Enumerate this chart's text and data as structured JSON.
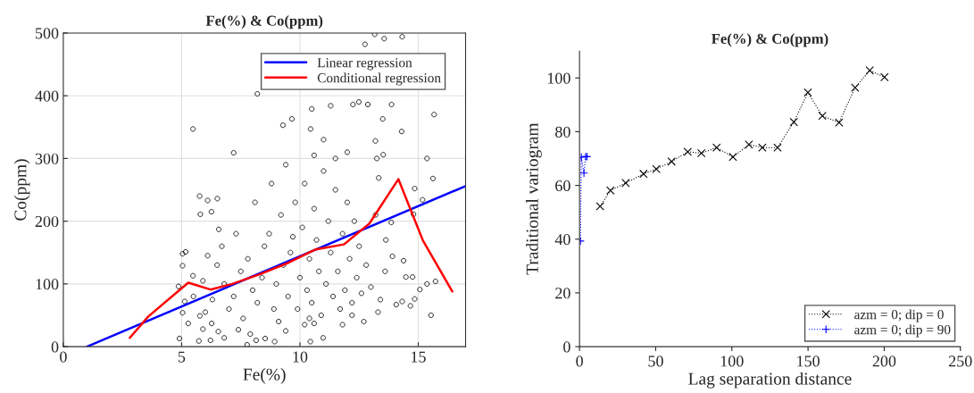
{
  "chart_data": [
    {
      "type": "scatter",
      "title": "Fe(%) & Co(ppm)",
      "xlabel": "Fe(%)",
      "ylabel": "Co(ppm)",
      "xlim": [
        0,
        17
      ],
      "ylim": [
        0,
        500
      ],
      "xticks": [
        0,
        5,
        10,
        15
      ],
      "yticks": [
        0,
        100,
        200,
        300,
        400,
        500
      ],
      "grid": true,
      "legend": "top right",
      "series": [
        {
          "color": "#000000",
          "marker": "circle",
          "x": [
            13.16,
            13.56,
            14.32,
            12.75,
            8.2,
            5.48,
            10.5,
            11.3,
            12.24,
            12.49,
            12.87,
            13.87,
            15.67,
            13.5,
            9.28,
            9.66,
            7.2,
            10.45,
            14.3,
            15.37,
            15.62,
            14.85,
            15.18,
            14.8,
            5.76,
            6.1,
            6.51,
            5.79,
            6.26,
            6.57,
            5.04,
            5.17,
            5.04,
            4.87,
            5.48,
            5.13,
            5.04,
            5.28,
            4.91,
            5.73,
            6.22,
            5.77,
            6.27,
            6.55,
            6.8,
            5.9,
            7.77,
            8.15,
            8.93,
            9.4,
            10.44,
            10.98,
            10.6,
            7.4,
            7.9,
            8.53,
            15.54,
            15.73,
            15.37,
            15.07,
            14.85,
            14.67,
            14.32,
            14.07,
            14.38,
            13.91,
            13.63,
            13.86,
            13.19,
            13.25,
            13.52,
            13.33,
            14.76,
            14.48,
            7,
            7.2,
            7.5,
            7.8,
            8,
            8.2,
            8.5,
            8.7,
            8.9,
            9,
            9.2,
            9.3,
            9.5,
            9.6,
            9.8,
            9.9,
            10,
            10.1,
            10.2,
            10.3,
            10.4,
            10.5,
            10.6,
            10.7,
            10.8,
            10.9,
            11,
            11.1,
            11.2,
            11.3,
            11.4,
            11.5,
            11.6,
            11.7,
            11.8,
            11.9,
            12,
            12.1,
            12.2,
            12.3,
            12.4,
            12.5,
            12.6,
            12.8,
            13,
            13.2,
            13.4,
            13.6,
            7.3,
            7.6,
            8.1,
            8.4,
            8.8,
            9.1,
            9.4,
            9.7,
            10.2,
            10.6,
            11,
            11.5,
            12,
            6.8,
            6.5,
            6.3,
            6,
            6.7,
            5.5,
            5.9,
            6.1,
            12.2,
            12.7,
            13.3,
            11.8,
            10.4
          ],
          "values": [
            498,
            491,
            494,
            482,
            403,
            347,
            379,
            384,
            386,
            390,
            386,
            386,
            370,
            363,
            353,
            363,
            309,
            347,
            343,
            300,
            268,
            252,
            234,
            211,
            240,
            233,
            236,
            211,
            215,
            187,
            148,
            151,
            129,
            96,
            113,
            72,
            54,
            37,
            13,
            9,
            10,
            49,
            37,
            24,
            14,
            28,
            3,
            10,
            8,
            25,
            8,
            14,
            37,
            27,
            20,
            13,
            50,
            104,
            100,
            91,
            76,
            65,
            72,
            67,
            137,
            144,
            170,
            198,
            328,
            300,
            306,
            269,
            111,
            111,
            60,
            80,
            120,
            140,
            90,
            70,
            160,
            180,
            60,
            100,
            210,
            130,
            80,
            150,
            230,
            60,
            110,
            190,
            260,
            90,
            140,
            70,
            220,
            170,
            120,
            50,
            280,
            100,
            200,
            150,
            80,
            250,
            120,
            60,
            180,
            90,
            230,
            140,
            70,
            200,
            110,
            160,
            85,
            130,
            95,
            210,
            75,
            120,
            180,
            45,
            230,
            110,
            260,
            40,
            290,
            175,
            35,
            305,
            330,
            300,
            310,
            100,
            130,
            75,
            55,
            160,
            80,
            105,
            145,
            50,
            40,
            55,
            35,
            45
          ]
        },
        {
          "type": "line",
          "name": "Linear regression",
          "color": "#0000ff",
          "line_style": "solid",
          "x": [
            1.0,
            17
          ],
          "values": [
            0,
            256
          ]
        },
        {
          "type": "line",
          "name": "Conditional regression",
          "color": "#ff0000",
          "line_style": "solid",
          "x": [
            2.81,
            3.59,
            5.28,
            6.22,
            7.14,
            8.27,
            9.53,
            10.67,
            11.86,
            12.93,
            14.16,
            15.2,
            16.44
          ],
          "values": [
            14,
            48,
            102,
            91,
            100,
            115,
            134,
            155,
            163,
            196,
            267,
            169,
            88
          ]
        }
      ]
    },
    {
      "type": "line",
      "title": "Fe(%) & Co(ppm)",
      "xlabel": "Lag separation distance",
      "ylabel": "Traditional variogram",
      "xlim": [
        0,
        250
      ],
      "ylim": [
        0,
        110
      ],
      "xticks": [
        0,
        50,
        100,
        150,
        200,
        250
      ],
      "yticks": [
        0,
        20,
        40,
        60,
        80,
        100
      ],
      "grid": false,
      "legend": "bottom right",
      "series": [
        {
          "name": "azm = 0; dip = 0",
          "color": "#000000",
          "marker": "cross",
          "line_style": "dotted",
          "x": [
            13.5,
            20.3,
            30.3,
            42.0,
            50.4,
            60.4,
            71.0,
            80.0,
            90.0,
            100.7,
            111.2,
            120.0,
            130.0,
            140.7,
            149.9,
            159.4,
            170.4,
            180.9,
            190.5,
            200.2
          ],
          "values": [
            52.2,
            58.1,
            60.9,
            64.3,
            66.1,
            68.9,
            72.5,
            72.0,
            74.1,
            70.6,
            75.2,
            74.1,
            74.1,
            83.6,
            94.6,
            85.9,
            83.4,
            96.4,
            102.8,
            100.3
          ]
        },
        {
          "name": "azm = 0; dip = 90",
          "color": "#0000ff",
          "marker": "plus",
          "line_style": "dotted",
          "x": [
            0.6,
            1.2,
            2.9,
            4.0,
            4.9
          ],
          "values": [
            39.3,
            70.5,
            64.6,
            70.7,
            70.7
          ]
        }
      ]
    }
  ]
}
